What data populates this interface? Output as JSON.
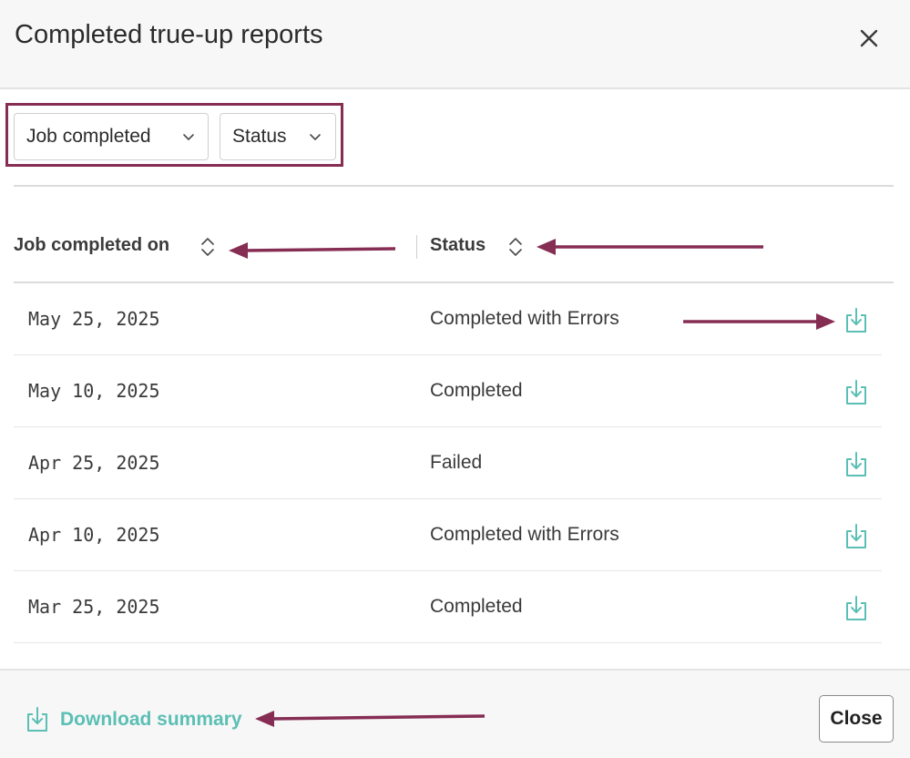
{
  "dialog": {
    "title": "Completed true-up reports",
    "close_icon": "close-icon"
  },
  "filters": [
    {
      "label": "Job completed",
      "icon": "chevron-down-icon"
    },
    {
      "label": "Status",
      "icon": "chevron-down-icon"
    }
  ],
  "table": {
    "columns": [
      {
        "label": "Job completed on",
        "icon": "sort-icon"
      },
      {
        "label": "Status",
        "icon": "sort-icon"
      }
    ],
    "rows": [
      {
        "date": "May 25, 2025",
        "status": "Completed with Errors",
        "action_icon": "download-icon"
      },
      {
        "date": "May 10, 2025",
        "status": "Completed",
        "action_icon": "download-icon"
      },
      {
        "date": "Apr 25, 2025",
        "status": "Failed",
        "action_icon": "download-icon"
      },
      {
        "date": "Apr 10, 2025",
        "status": "Completed with Errors",
        "action_icon": "download-icon"
      },
      {
        "date": "Mar 25, 2025",
        "status": "Completed",
        "action_icon": "download-icon"
      }
    ]
  },
  "footer": {
    "download_summary_label": "Download summary",
    "close_label": "Close"
  },
  "colors": {
    "accent_teal": "#5bbfb5",
    "annotation": "#862d54"
  }
}
